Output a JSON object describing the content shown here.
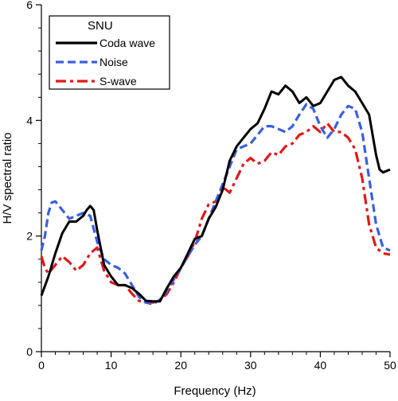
{
  "chart_data": {
    "type": "line",
    "title": "",
    "xlabel": "Frequency (Hz)",
    "ylabel": "H/V spectral ratio",
    "xlim": [
      0,
      50
    ],
    "ylim": [
      0,
      6
    ],
    "xticks": [
      0,
      10,
      20,
      30,
      40,
      50
    ],
    "yticks": [
      0,
      2,
      4,
      6
    ],
    "grid": false,
    "legend": {
      "title": "SNU",
      "placement": "top-left"
    },
    "series": [
      {
        "name": "Coda wave",
        "color": "#000000",
        "dash": "solid",
        "x": [
          0,
          1,
          2,
          3,
          4,
          5,
          6,
          6.5,
          7,
          7.5,
          8,
          9,
          10,
          11,
          12,
          13,
          14,
          15,
          16,
          17,
          18,
          19,
          20,
          21,
          22,
          23,
          24,
          25,
          26,
          27,
          28,
          29,
          30,
          31,
          32,
          33,
          34,
          35,
          36,
          37,
          38,
          39,
          40,
          41,
          42,
          43,
          44,
          45,
          46,
          47,
          48,
          48.5,
          49,
          50
        ],
        "y": [
          0.97,
          1.3,
          1.7,
          2.05,
          2.25,
          2.25,
          2.35,
          2.45,
          2.52,
          2.45,
          2.1,
          1.5,
          1.3,
          1.15,
          1.15,
          1.1,
          1.0,
          0.88,
          0.87,
          0.87,
          1.1,
          1.3,
          1.45,
          1.7,
          1.95,
          2.0,
          2.3,
          2.5,
          2.8,
          3.3,
          3.55,
          3.7,
          3.85,
          3.95,
          4.2,
          4.5,
          4.45,
          4.6,
          4.5,
          4.3,
          4.4,
          4.25,
          4.3,
          4.5,
          4.7,
          4.75,
          4.6,
          4.5,
          4.3,
          4.1,
          3.4,
          3.15,
          3.1,
          3.15
        ]
      },
      {
        "name": "Noise",
        "color": "#3a5fe0",
        "dash": "dashed",
        "x": [
          0,
          0.5,
          1,
          1.5,
          2,
          3,
          4,
          5,
          6,
          7,
          8,
          9,
          10,
          11,
          12,
          13,
          14,
          15,
          16,
          17,
          18,
          19,
          20,
          21,
          22,
          23,
          24,
          25,
          26,
          27,
          28,
          29,
          30,
          31,
          32,
          33,
          34,
          35,
          36,
          37,
          38,
          39,
          40,
          41,
          42,
          43,
          44,
          45,
          46,
          47,
          48,
          49,
          50
        ],
        "y": [
          1.75,
          2.0,
          2.4,
          2.58,
          2.6,
          2.45,
          2.3,
          2.35,
          2.4,
          2.35,
          1.9,
          1.6,
          1.5,
          1.45,
          1.35,
          1.15,
          0.95,
          0.85,
          0.82,
          0.9,
          1.05,
          1.25,
          1.45,
          1.65,
          1.85,
          2.0,
          2.3,
          2.6,
          2.9,
          3.2,
          3.5,
          3.55,
          3.6,
          3.75,
          3.9,
          3.9,
          3.85,
          3.8,
          3.9,
          4.1,
          4.28,
          4.2,
          3.9,
          3.7,
          3.85,
          4.1,
          4.25,
          4.2,
          3.8,
          3.0,
          2.2,
          1.8,
          1.75
        ]
      },
      {
        "name": "S-wave",
        "color": "#e0191b",
        "dash": "dashdot",
        "x": [
          0,
          0.5,
          1,
          2,
          3,
          4,
          5,
          6,
          7,
          8,
          9,
          10,
          11,
          12,
          13,
          14,
          15,
          16,
          17,
          18,
          19,
          20,
          21,
          22,
          23,
          24,
          25,
          26,
          27,
          28,
          29,
          30,
          31,
          32,
          33,
          34,
          35,
          36,
          37,
          38,
          39,
          40,
          41,
          42,
          43,
          44,
          45,
          46,
          47,
          48,
          49,
          50
        ],
        "y": [
          1.65,
          1.45,
          1.35,
          1.5,
          1.65,
          1.55,
          1.4,
          1.5,
          1.7,
          1.8,
          1.4,
          1.2,
          1.15,
          1.15,
          1.0,
          0.88,
          0.85,
          0.85,
          0.88,
          1.0,
          1.2,
          1.45,
          1.65,
          1.9,
          2.3,
          2.55,
          2.6,
          2.85,
          2.75,
          3.0,
          3.25,
          3.35,
          3.25,
          3.3,
          3.45,
          3.4,
          3.55,
          3.6,
          3.75,
          3.8,
          3.9,
          3.8,
          3.95,
          3.8,
          3.8,
          3.7,
          3.5,
          3.0,
          2.2,
          1.8,
          1.7,
          1.68
        ]
      }
    ]
  }
}
